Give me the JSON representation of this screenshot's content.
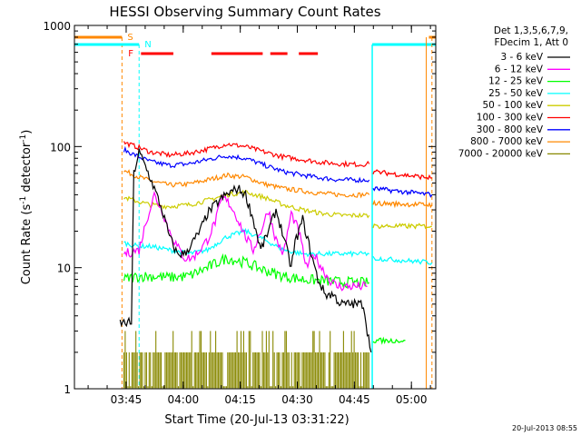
{
  "chart_data": {
    "type": "line",
    "title": "HESSI Observing Summary Count Rates",
    "xlabel": "Start Time (20-Jul-13 03:31:22)",
    "ylabel": "Count Rate (s⁻¹ detector⁻¹)",
    "ylabel_main": "Count Rate (s",
    "ylabel_exp": "-1",
    "ylabel_mid": " detector",
    "ylabel_exp2": "-1",
    "ylabel_end": ")",
    "y_scale": "log",
    "xlim_minutes": [
      0,
      95
    ],
    "ylim": [
      1,
      1000
    ],
    "x_ticks": [
      {
        "label": "03:45",
        "min": 13.6
      },
      {
        "label": "04:00",
        "min": 28.6
      },
      {
        "label": "04:15",
        "min": 43.6
      },
      {
        "label": "04:30",
        "min": 58.6
      },
      {
        "label": "04:45",
        "min": 73.6
      },
      {
        "label": "05:00",
        "min": 88.6
      }
    ],
    "y_ticks": [
      {
        "label": "1",
        "value": 1
      },
      {
        "label": "10",
        "value": 10
      },
      {
        "label": "100",
        "value": 100
      },
      {
        "label": "1000",
        "value": 1000
      }
    ],
    "legend_header": [
      "Det 1,3,5,6,7,9,",
      "FDecim 1, Att 0"
    ],
    "legend_position": "right",
    "series": [
      {
        "name": "3 - 6 keV",
        "color": "#000000",
        "x": [
          12,
          15,
          15.6,
          17,
          19,
          21,
          23,
          25,
          27,
          29,
          31,
          33,
          35,
          37,
          39,
          41,
          43,
          45,
          47,
          49,
          51,
          53,
          55,
          57,
          58,
          60,
          62,
          64,
          66,
          68,
          70,
          72,
          74,
          76,
          77,
          78
        ],
        "y": [
          3.5,
          3.5,
          60,
          90,
          65,
          45,
          30,
          18,
          13,
          13,
          16,
          20,
          28,
          33,
          38,
          42,
          45,
          40,
          25,
          14,
          20,
          30,
          18,
          10,
          16,
          25,
          14,
          8,
          6,
          6,
          5,
          5,
          5,
          5,
          3,
          2
        ]
      },
      {
        "name": "6 - 12 keV",
        "color": "#ff00ff",
        "x": [
          13,
          17,
          19,
          21,
          23,
          25,
          27,
          29,
          31,
          33,
          35,
          37,
          39,
          41,
          43,
          45,
          47,
          49,
          51,
          53,
          55,
          57,
          59,
          61,
          63,
          65,
          67,
          69,
          71,
          73,
          75,
          77
        ],
        "y": [
          13,
          14,
          25,
          40,
          30,
          20,
          15,
          12,
          12,
          14,
          17,
          24,
          38,
          33,
          25,
          18,
          14,
          20,
          30,
          17,
          13,
          28,
          20,
          10,
          13,
          10,
          8,
          7,
          7,
          7,
          7,
          7
        ]
      },
      {
        "name": "12 - 25 keV",
        "color": "#00ff00",
        "x": [
          13,
          17,
          20,
          25,
          30,
          35,
          40,
          45,
          50,
          55,
          60,
          65,
          70,
          75,
          77.5
        ],
        "y": [
          8,
          8.5,
          8.5,
          8.3,
          8.5,
          10,
          12,
          11,
          9.5,
          8.5,
          8,
          7.8,
          7.6,
          7.5,
          7.5
        ]
      },
      {
        "name": "25 - 50 keV",
        "color": "#00ffff",
        "x": [
          13,
          17,
          20,
          25,
          30,
          35,
          40,
          45,
          50,
          55,
          60,
          65,
          70,
          75,
          77.5
        ],
        "y": [
          16,
          15,
          15,
          14,
          13,
          14,
          18,
          20,
          17,
          14,
          13,
          13,
          13,
          13,
          13
        ]
      },
      {
        "name": "50 - 100 keV",
        "color": "#cccc00",
        "x": [
          13,
          17,
          20,
          25,
          30,
          35,
          40,
          45,
          50,
          55,
          60,
          65,
          70,
          75,
          77.5
        ],
        "y": [
          38,
          35,
          33,
          32,
          33,
          36,
          40,
          42,
          38,
          33,
          30,
          28,
          27,
          27,
          27
        ]
      },
      {
        "name": "100 - 300 keV",
        "color": "#ff0000",
        "x": [
          13,
          17,
          20,
          25,
          30,
          35,
          40,
          45,
          50,
          55,
          60,
          65,
          70,
          75,
          77.5
        ],
        "y": [
          108,
          98,
          90,
          85,
          88,
          95,
          105,
          100,
          90,
          82,
          78,
          74,
          72,
          71,
          72
        ]
      },
      {
        "name": "300 - 800 keV",
        "color": "#0000ff",
        "x": [
          13,
          17,
          20,
          25,
          30,
          35,
          40,
          45,
          50,
          55,
          60,
          65,
          70,
          75,
          77.5
        ],
        "y": [
          94,
          82,
          75,
          70,
          72,
          78,
          84,
          80,
          70,
          62,
          58,
          55,
          53,
          53,
          53
        ]
      },
      {
        "name": "800 - 7000 keV",
        "color": "#ff8800",
        "x": [
          13,
          17,
          20,
          25,
          30,
          35,
          40,
          45,
          50,
          55,
          60,
          65,
          70,
          75,
          77.5
        ],
        "y": [
          63,
          56,
          52,
          48,
          49,
          53,
          58,
          56,
          49,
          45,
          43,
          41,
          40,
          40,
          40
        ]
      },
      {
        "name": "7000 - 20000 keV",
        "color": "#888800",
        "x": [
          13,
          77.5
        ],
        "y": [
          2,
          2
        ]
      }
    ],
    "annotations": {
      "S": {
        "label": "S",
        "color": "#ff8800"
      },
      "N": {
        "label": "N",
        "color": "#00ffff"
      },
      "F": {
        "label": "F",
        "color": "#ff0000"
      }
    },
    "segments_after": [
      {
        "color": "#ff0000",
        "x": [
          78.5,
          94
        ],
        "y": [
          62,
          55
        ]
      },
      {
        "color": "#0000ff",
        "x": [
          78.5,
          94
        ],
        "y": [
          45,
          40
        ]
      },
      {
        "color": "#ff8800",
        "x": [
          78.5,
          94
        ],
        "y": [
          34,
          33
        ]
      },
      {
        "color": "#cccc00",
        "x": [
          78.5,
          94
        ],
        "y": [
          22,
          22
        ]
      },
      {
        "color": "#00ffff",
        "x": [
          78.5,
          94
        ],
        "y": [
          12,
          11
        ]
      },
      {
        "color": "#00ff00",
        "x": [
          78.5,
          87
        ],
        "y": [
          2.5,
          2.5
        ]
      }
    ],
    "timestamp": "20-Jul-2013 08:55"
  }
}
